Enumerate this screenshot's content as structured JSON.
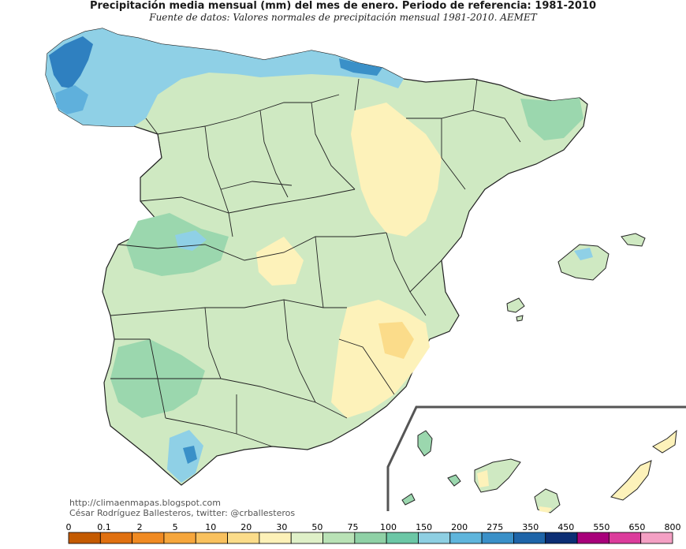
{
  "map": {
    "title": "Precipitación media mensual (mm) del mes de enero. Periodo de referencia: 1981-2010",
    "subtitle": "Fuente de datos: Valores normales de precipitación mensual 1981-2010. AEMET",
    "credits": {
      "url": "http://climaenmapas.blogspot.com",
      "author": "César Rodríguez Ballesteros, twitter: @crballesteros"
    },
    "legend": {
      "breaks": [
        "0",
        "0.1",
        "2",
        "5",
        "10",
        "20",
        "30",
        "50",
        "75",
        "100",
        "150",
        "200",
        "275",
        "350",
        "450",
        "550",
        "650",
        "800"
      ],
      "colors": [
        "#c45a00",
        "#e07010",
        "#f08a22",
        "#f6a63c",
        "#f9c15e",
        "#fbdc8a",
        "#fdf1b8",
        "#dff0c8",
        "#b9e2b6",
        "#8fd1a6",
        "#6cc7a6",
        "#8ecfe2",
        "#5fb5dc",
        "#3a90c8",
        "#1e64a8",
        "#0c2e74",
        "#a8007a",
        "#dc3c9c",
        "#f4a0c4"
      ]
    },
    "colors": {
      "light_green": "#cfe9c2",
      "medium_green": "#9bd7ae",
      "teal_green": "#6cc7a6",
      "pale_yellow": "#fdf2ba",
      "light_blue": "#8fd0e6",
      "mid_blue": "#5fb0dc",
      "dark_blue": "#2f80c0",
      "border": "#222222",
      "inset_frame": "#555555"
    }
  }
}
